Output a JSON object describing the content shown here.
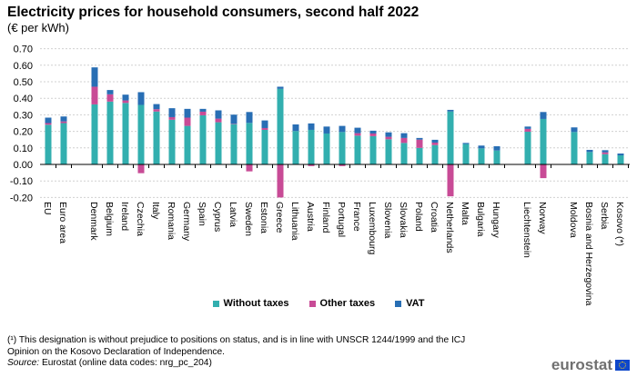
{
  "title": "Electricity prices for household consumers, second half 2022",
  "subtitle": "(€ per kWh)",
  "footnote_line1": "(¹) This designation is without prejudice to positions on status, and is in line with UNSCR 1244/1999 and the ICJ",
  "footnote_line2": "Opinion on the Kosovo Declaration of Independence.",
  "source_label": "Source:",
  "source_text": " Eurostat (online data codes: nrg_pc_204)",
  "logo": "eurostat",
  "chart_data": {
    "type": "bar",
    "stacked": true,
    "title": "Electricity prices for household consumers, second half 2022",
    "ylabel": "(€ per kWh)",
    "ylim": [
      -0.2,
      0.7
    ],
    "yticks": [
      "-0.20",
      "-0.10",
      "0.00",
      "0.10",
      "0.20",
      "0.30",
      "0.40",
      "0.50",
      "0.60",
      "0.70"
    ],
    "grid": true,
    "legend": "bottom",
    "groups": [
      [
        "EU",
        "Euro area"
      ],
      [
        "Denmark",
        "Belgium",
        "Ireland",
        "Czechia",
        "Italy",
        "Romania",
        "Germany",
        "Spain",
        "Cyprus",
        "Latvia",
        "Sweden",
        "Estonia",
        "Greece",
        "Lithuania",
        "Austria",
        "Finland",
        "Portugal",
        "France",
        "Luxembourg",
        "Slovenia",
        "Slovakia",
        "Poland",
        "Croatia",
        "Netherlands",
        "Malta",
        "Bulgaria",
        "Hungary"
      ],
      [
        "Liechtenstein",
        "Norway"
      ],
      [
        "Moldova",
        "Bosnia and Herzegovina",
        "Serbia",
        "Kosovo (*)"
      ]
    ],
    "series": [
      {
        "name": "Without taxes",
        "color": "#32afaf",
        "values": [
          0.24,
          0.25,
          0.363,
          0.38,
          0.372,
          0.36,
          0.32,
          0.27,
          0.233,
          0.297,
          0.255,
          0.244,
          0.251,
          0.209,
          0.457,
          0.202,
          0.209,
          0.187,
          0.196,
          0.174,
          0.171,
          0.152,
          0.13,
          0.1,
          0.117,
          0.32,
          0.123,
          0.097,
          0.084,
          0.198,
          0.275,
          0.196,
          0.075,
          0.062,
          0.055
        ]
      },
      {
        "name": "Other taxes",
        "color": "#c84b96",
        "values": [
          0.01,
          0.01,
          0.107,
          0.044,
          0.015,
          -0.053,
          0.014,
          0.016,
          0.05,
          0.022,
          0.022,
          0.002,
          -0.042,
          0.011,
          -0.2,
          0.0,
          -0.01,
          0.0,
          -0.01,
          0.015,
          0.016,
          0.015,
          0.03,
          0.05,
          0.015,
          -0.193,
          0.0,
          0.0,
          0.0,
          0.017,
          -0.083,
          0.0,
          0.0,
          0.011,
          0.0
        ]
      },
      {
        "name": "VAT",
        "color": "#286eb4",
        "values": [
          0.033,
          0.03,
          0.117,
          0.026,
          0.035,
          0.077,
          0.031,
          0.054,
          0.053,
          0.017,
          0.05,
          0.055,
          0.066,
          0.046,
          0.013,
          0.04,
          0.039,
          0.042,
          0.037,
          0.033,
          0.017,
          0.027,
          0.029,
          0.01,
          0.017,
          0.01,
          0.007,
          0.017,
          0.026,
          0.014,
          0.042,
          0.028,
          0.013,
          0.013,
          0.011
        ]
      }
    ]
  }
}
